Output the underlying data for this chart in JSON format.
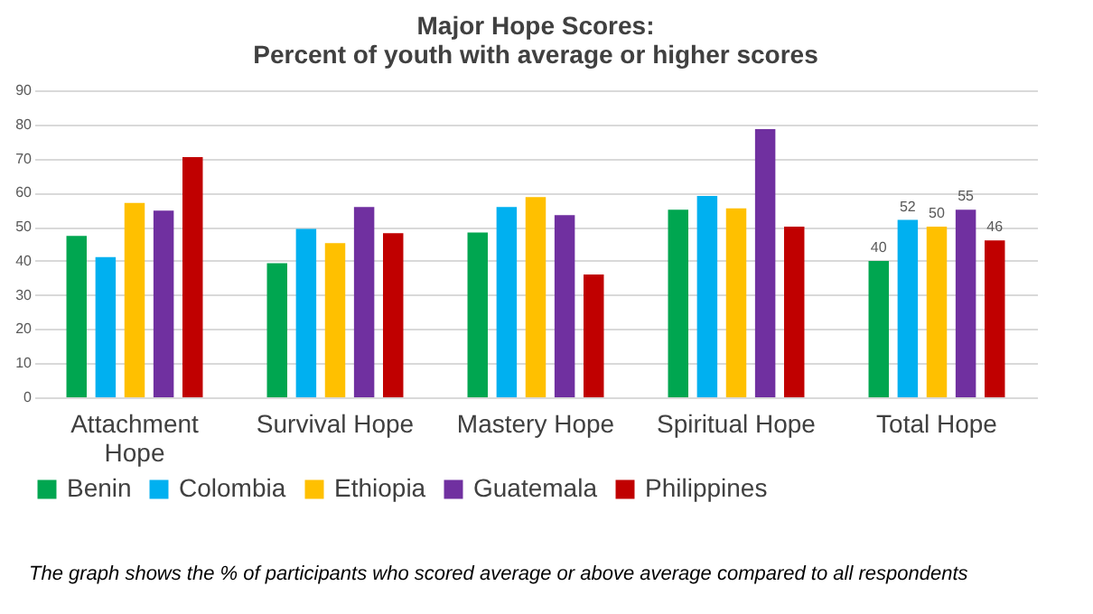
{
  "chart_data": {
    "type": "bar",
    "title": "Major Hope Scores:",
    "subtitle": "Percent of youth with average or higher scores",
    "categories": [
      "Attachment Hope",
      "Survival Hope",
      "Mastery Hope",
      "Spiritual Hope",
      "Total Hope"
    ],
    "series": [
      {
        "name": "Benin",
        "color": "#00a650",
        "values": [
          47.3,
          39.3,
          48.3,
          55,
          40
        ],
        "value_labels": [
          null,
          null,
          null,
          null,
          "40"
        ]
      },
      {
        "name": "Colombia",
        "color": "#00b0f0",
        "values": [
          41.1,
          49.4,
          55.8,
          59,
          52
        ],
        "value_labels": [
          null,
          null,
          null,
          null,
          "52"
        ]
      },
      {
        "name": "Ethiopia",
        "color": "#ffc000",
        "values": [
          57,
          45.2,
          58.7,
          55.4,
          50
        ],
        "value_labels": [
          null,
          null,
          null,
          null,
          "50"
        ]
      },
      {
        "name": "Guatemala",
        "color": "#7030a0",
        "values": [
          54.7,
          55.8,
          53.4,
          78.6,
          55
        ],
        "value_labels": [
          null,
          null,
          null,
          null,
          "55"
        ]
      },
      {
        "name": "Philippines",
        "color": "#c00000",
        "values": [
          70.4,
          48.1,
          36,
          50,
          46
        ],
        "value_labels": [
          null,
          null,
          null,
          null,
          "46"
        ]
      }
    ],
    "ylim": [
      0,
      90
    ],
    "yticks": [
      0,
      10,
      20,
      30,
      40,
      50,
      60,
      70,
      80,
      90
    ],
    "grid": "y",
    "legend": "bottom",
    "annotations": [
      "The graph shows the % of participants who scored average or above average compared to all respondents"
    ]
  }
}
